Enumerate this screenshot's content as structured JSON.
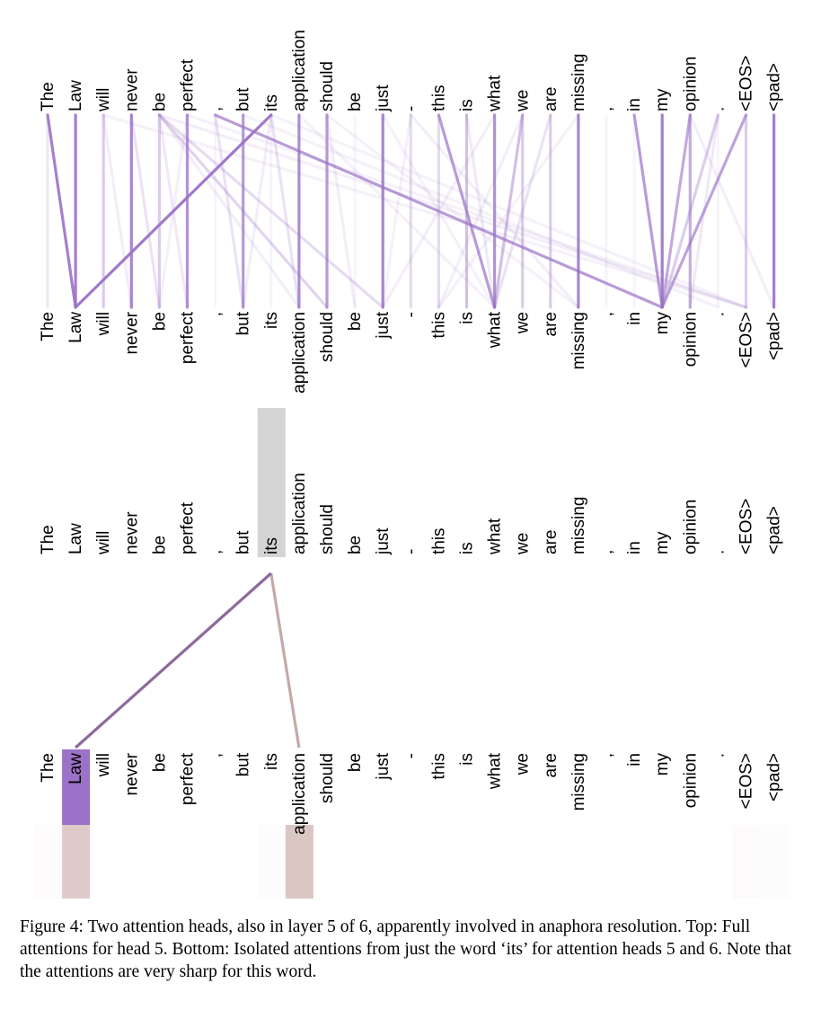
{
  "tokens": [
    "The",
    "Law",
    "will",
    "never",
    "be",
    "perfect",
    ",",
    "but",
    "its",
    "application",
    "should",
    "be",
    "just",
    "-",
    "this",
    "is",
    "what",
    "we",
    "are",
    "missing",
    ",",
    "in",
    "my",
    "opinion",
    ".",
    "<EOS>",
    "<pad>"
  ],
  "colors": {
    "head5": "#9b72c8",
    "head6": "#c2a19c",
    "highlight": "#d4d4d4",
    "head5_line": "#8e6a9b",
    "head6_line": "#bfa0a0"
  },
  "top_panel": {
    "head": 5,
    "edges": [
      {
        "from": "The",
        "to": "Law",
        "weight": 0.9
      },
      {
        "from": "Law",
        "to": "Law",
        "weight": 0.9
      },
      {
        "from": "will",
        "to": "will",
        "weight": 0.3
      },
      {
        "from": "never",
        "to": "never",
        "weight": 0.85
      },
      {
        "from": "never",
        "to": "be",
        "weight": 0.2
      },
      {
        "from": "be",
        "to": "be",
        "weight": 0.3
      },
      {
        "from": "be",
        "to": "perfect",
        "weight": 0.15
      },
      {
        "from": "perfect",
        "to": "perfect",
        "weight": 0.75
      },
      {
        "from": ",",
        "to": "but",
        "weight": 0.2
      },
      {
        "from": "but",
        "to": "but",
        "weight": 0.7
      },
      {
        "from": "its",
        "to": "Law",
        "weight": 0.95
      },
      {
        "from": "its",
        "to": "application",
        "weight": 0.2
      },
      {
        "from": "application",
        "to": "application",
        "weight": 0.8
      },
      {
        "from": "should",
        "to": "should",
        "weight": 0.7
      },
      {
        "from": "be",
        "to": "should",
        "weight": 0.3
      },
      {
        "from": "be",
        "to": "just",
        "weight": 0.25
      },
      {
        "from": "just",
        "to": "just",
        "weight": 0.85
      },
      {
        "from": "-",
        "to": "-",
        "weight": 0.2
      },
      {
        "from": "this",
        "to": "what",
        "weight": 0.7
      },
      {
        "from": "this",
        "to": "this",
        "weight": 0.2
      },
      {
        "from": "is",
        "to": "is",
        "weight": 0.4
      },
      {
        "from": "what",
        "to": "what",
        "weight": 0.75
      },
      {
        "from": "we",
        "to": "what",
        "weight": 0.45
      },
      {
        "from": "we",
        "to": "we",
        "weight": 0.3
      },
      {
        "from": "are",
        "to": "are",
        "weight": 0.3
      },
      {
        "from": "missing",
        "to": "missing",
        "weight": 0.85
      },
      {
        "from": ",",
        "to": "my",
        "weight": 0.7
      },
      {
        "from": "in",
        "to": "my",
        "weight": 0.7
      },
      {
        "from": "my",
        "to": "my",
        "weight": 0.9
      },
      {
        "from": "opinion",
        "to": "my",
        "weight": 0.6
      },
      {
        "from": "opinion",
        "to": "opinion",
        "weight": 0.55
      },
      {
        "from": ".",
        "to": "my",
        "weight": 0.35
      },
      {
        "from": "<EOS>",
        "to": "my",
        "weight": 0.65
      },
      {
        "from": "<EOS>",
        "to": "<EOS>",
        "weight": 0.3
      },
      {
        "from": "<pad>",
        "to": "<pad>",
        "weight": 0.9
      },
      {
        "from": "be",
        "to": "<EOS>",
        "weight": 0.12
      },
      {
        "from": "perfect",
        "to": "<EOS>",
        "weight": 0.1
      },
      {
        "from": "will",
        "to": "<EOS>",
        "weight": 0.1
      },
      {
        "from": "but",
        "to": ".",
        "weight": 0.1
      },
      {
        "from": "its",
        "to": "<EOS>",
        "weight": 0.1
      },
      {
        "from": "application",
        "to": "what",
        "weight": 0.1
      },
      {
        "from": "should",
        "to": "missing",
        "weight": 0.1
      },
      {
        "from": "-",
        "to": "missing",
        "weight": 0.12
      },
      {
        "from": "is",
        "to": "what",
        "weight": 0.15
      },
      {
        "from": "are",
        "to": "what",
        "weight": 0.2
      },
      {
        "from": "what",
        "to": "just",
        "weight": 0.12
      },
      {
        "from": "missing",
        "to": "this",
        "weight": 0.1
      },
      {
        "from": "be",
        "to": "application",
        "weight": 0.12
      },
      {
        "from": ".",
        "to": "opinion",
        "weight": 0.15
      },
      {
        "from": "opinion",
        "to": "<pad>",
        "weight": 0.12
      },
      {
        "from": "just",
        "to": "what",
        "weight": 0.1
      },
      {
        "from": "-",
        "to": "just",
        "weight": 0.1
      },
      {
        "from": "will",
        "to": "never",
        "weight": 0.12
      },
      {
        "from": "its",
        "to": "but",
        "weight": 0.12
      },
      {
        "from": "we",
        "to": "this",
        "weight": 0.12
      },
      {
        "from": "perfect",
        "to": "be",
        "weight": 0.1
      },
      {
        "from": "The",
        "to": "The",
        "weight": 0.1
      },
      {
        "from": "should",
        "to": "be",
        "weight": 0.12
      }
    ]
  },
  "bottom_panel": {
    "focus_token": "its",
    "head5": [
      {
        "to": "Law",
        "weight": 0.95
      }
    ],
    "head6": [
      {
        "to": "Law",
        "weight": 0.5
      },
      {
        "to": "application",
        "weight": 0.65
      }
    ],
    "bars": [
      {
        "token": "Law",
        "head": 5,
        "weight": 1.0
      },
      {
        "token": "Law",
        "head": 6,
        "weight": 0.55
      },
      {
        "token": "application",
        "head": 6,
        "weight": 0.6
      },
      {
        "token": "The",
        "head": 6,
        "weight": 0.04
      },
      {
        "token": "its",
        "head": 6,
        "weight": 0.03
      },
      {
        "token": "<EOS>",
        "head": 6,
        "weight": 0.05
      },
      {
        "token": "<pad>",
        "head": 6,
        "weight": 0.03
      }
    ]
  },
  "caption": "Figure 4: Two attention heads, also in layer 5 of 6, apparently involved in anaphora resolution. Top: Full attentions for head 5. Bottom: Isolated attentions from just the word ‘its’ for attention heads 5 and 6. Note that the attentions are very sharp for this word."
}
